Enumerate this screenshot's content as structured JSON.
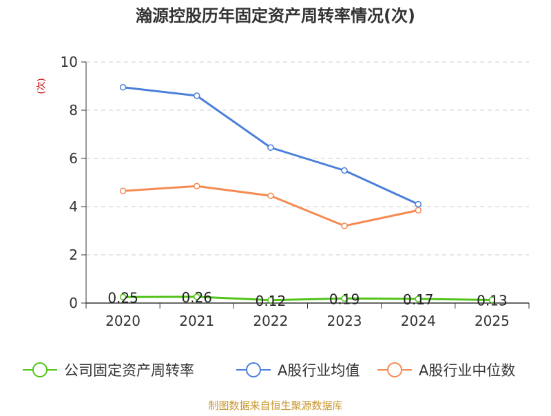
{
  "chart_data": {
    "type": "line",
    "title": "瀚源控股历年固定资产周转率情况(次)",
    "ylabel": "(次)",
    "xlabel": "",
    "categories": [
      "2020",
      "2021",
      "2022",
      "2023",
      "2024",
      "2025"
    ],
    "ylim": [
      0,
      10
    ],
    "yticks": [
      0,
      2,
      4,
      6,
      8,
      10
    ],
    "grid": true,
    "legend_position": "bottom",
    "series": [
      {
        "name": "公司固定资产周转率",
        "color": "#52c41a",
        "values": [
          0.25,
          0.26,
          0.12,
          0.19,
          0.17,
          0.13
        ],
        "labels": [
          "0.25",
          "0.26",
          "0.12",
          "0.19",
          "0.17",
          "0.13"
        ]
      },
      {
        "name": "A股行业均值",
        "color": "#4a7fdc",
        "values": [
          8.95,
          8.6,
          6.45,
          5.5,
          4.1,
          null
        ]
      },
      {
        "name": "A股行业中位数",
        "color": "#f58a52",
        "values": [
          4.65,
          4.85,
          4.45,
          3.2,
          3.85,
          null
        ]
      }
    ]
  },
  "source": "制图数据来自恒生聚源数据库",
  "colors": {
    "title": "#333333",
    "ylabel": "#cc0000",
    "axis": "#333333",
    "grid": "#cccccc",
    "source": "#c8962d"
  }
}
